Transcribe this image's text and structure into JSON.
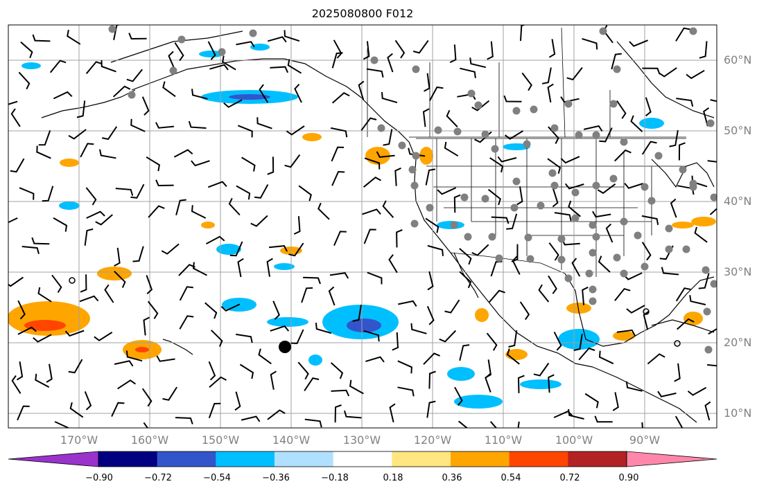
{
  "title": "2025080800 F012",
  "map": {
    "projection": "PlateCarree",
    "lon_range": [
      -180,
      -80
    ],
    "lat_range": [
      8,
      65
    ],
    "graticule_step_deg": 10,
    "grid": true,
    "lat_labels": [
      "60°N",
      "50°N",
      "40°N",
      "30°N",
      "20°N",
      "10°N"
    ],
    "lon_labels": [
      "170°W",
      "160°W",
      "150°W",
      "140°W",
      "130°W",
      "120°W",
      "110°W",
      "100°W",
      "90°W"
    ],
    "colors": {
      "coast": "#000000",
      "grid": "#a0a0a0",
      "station_dot": "#808080",
      "typhoon_marker": "#000000"
    },
    "highlight_marker": {
      "lon": -141,
      "lat": 19.5,
      "label": ""
    }
  },
  "colorbar": {
    "tick_labels": [
      "−0.90",
      "−0.72",
      "−0.54",
      "−0.36",
      "−0.18",
      "0.18",
      "0.36",
      "0.54",
      "0.72",
      "0.90"
    ],
    "colors": [
      "#9933cc",
      "#000080",
      "#3355cc",
      "#00bfff",
      "#b0e0ff",
      "#ffffff",
      "#ffe680",
      "#ffa500",
      "#ff4500",
      "#b22222",
      "#ff88aa"
    ],
    "extend": "both"
  },
  "legend_icons": {
    "wind_barb": "wind-barb-icon",
    "station": "station-dot-icon"
  }
}
